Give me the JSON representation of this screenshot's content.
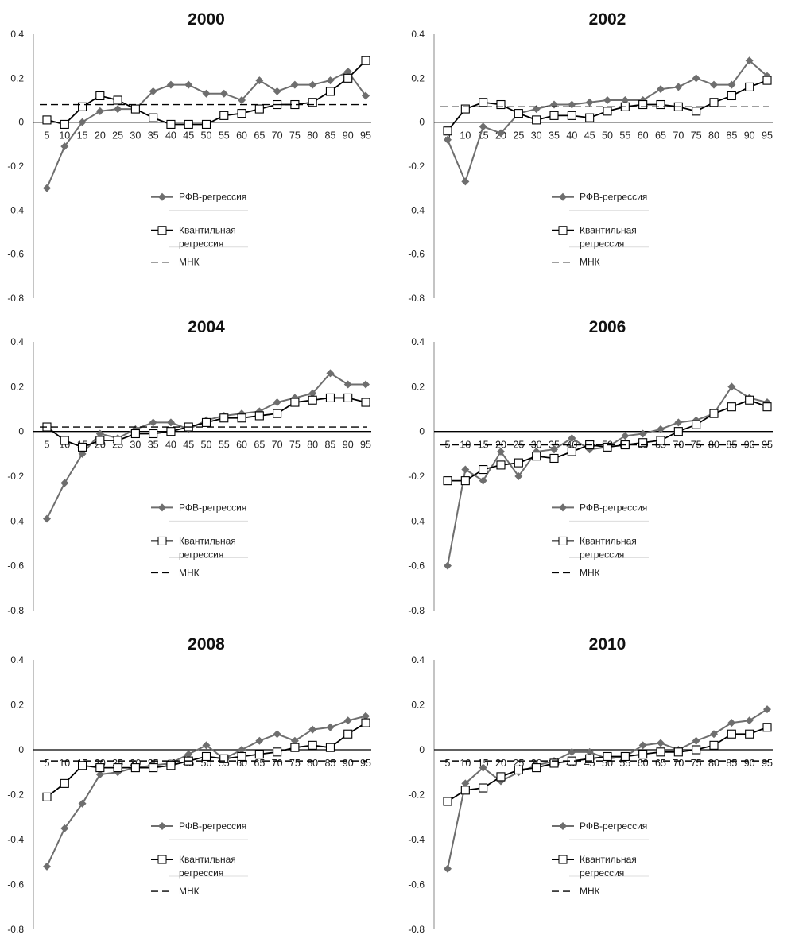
{
  "legend": {
    "rfv": "РФВ-регрессия",
    "quantile_line1": "Квантильная",
    "quantile_line2": "регрессия",
    "ols": "МНК"
  },
  "colors": {
    "rfv": "#6e6e6e",
    "quantile": "#000000",
    "ols": "#000000",
    "axis": "#8a8a8a",
    "zero_line": "#000000",
    "legend_divider": "#dcdcdc"
  },
  "chart_data": [
    {
      "type": "line",
      "title": "2000",
      "x": [
        5,
        10,
        15,
        20,
        25,
        30,
        35,
        40,
        45,
        50,
        55,
        60,
        65,
        70,
        75,
        80,
        85,
        90,
        95
      ],
      "ylim": [
        -0.8,
        0.4
      ],
      "yticks": [
        "0.4",
        "0.2",
        "0",
        "-0.2",
        "-0.4",
        "-0.6",
        "-0.8"
      ],
      "xticks": [
        "5",
        "10",
        "15",
        "20",
        "25",
        "30",
        "35",
        "40",
        "45",
        "50",
        "55",
        "60",
        "65",
        "70",
        "75",
        "80",
        "85",
        "90",
        "95"
      ],
      "legend_position": "center",
      "series": [
        {
          "name": "РФВ-регрессия",
          "marker": "diamond",
          "values": [
            -0.3,
            -0.11,
            0.0,
            0.05,
            0.06,
            0.06,
            0.14,
            0.17,
            0.17,
            0.13,
            0.13,
            0.1,
            0.19,
            0.14,
            0.17,
            0.17,
            0.19,
            0.23,
            0.12
          ]
        },
        {
          "name": "Квантильная регрессия",
          "marker": "square",
          "values": [
            0.01,
            -0.01,
            0.07,
            0.12,
            0.1,
            0.06,
            0.02,
            -0.01,
            -0.01,
            -0.01,
            0.03,
            0.04,
            0.06,
            0.08,
            0.08,
            0.09,
            0.14,
            0.2,
            0.28
          ]
        },
        {
          "name": "МНК",
          "style": "dashed",
          "values": [
            0.08,
            0.08,
            0.08,
            0.08,
            0.08,
            0.08,
            0.08,
            0.08,
            0.08,
            0.08,
            0.08,
            0.08,
            0.08,
            0.08,
            0.08,
            0.08,
            0.08,
            0.08,
            0.08
          ]
        }
      ]
    },
    {
      "type": "line",
      "title": "2002",
      "x": [
        5,
        10,
        15,
        20,
        25,
        30,
        35,
        40,
        45,
        50,
        55,
        60,
        65,
        70,
        75,
        80,
        85,
        90,
        95
      ],
      "ylim": [
        -0.8,
        0.4
      ],
      "yticks": [
        "0.4",
        "0.2",
        "0",
        "-0.2",
        "-0.4",
        "-0.6",
        "-0.8"
      ],
      "xticks": [
        "5",
        "10",
        "15",
        "20",
        "25",
        "30",
        "35",
        "40",
        "45",
        "50",
        "55",
        "60",
        "65",
        "70",
        "75",
        "80",
        "85",
        "90",
        "95"
      ],
      "legend_position": "center",
      "series": [
        {
          "name": "РФВ-регрессия",
          "marker": "diamond",
          "values": [
            -0.08,
            -0.27,
            -0.02,
            -0.05,
            0.04,
            0.06,
            0.08,
            0.08,
            0.09,
            0.1,
            0.1,
            0.1,
            0.15,
            0.16,
            0.2,
            0.17,
            0.17,
            0.28,
            0.21
          ]
        },
        {
          "name": "Квантильная регрессия",
          "marker": "square",
          "values": [
            -0.04,
            0.06,
            0.09,
            0.08,
            0.04,
            0.01,
            0.03,
            0.03,
            0.02,
            0.05,
            0.07,
            0.08,
            0.08,
            0.07,
            0.05,
            0.09,
            0.12,
            0.16,
            0.19
          ]
        },
        {
          "name": "МНК",
          "style": "dashed",
          "values": [
            0.07,
            0.07,
            0.07,
            0.07,
            0.07,
            0.07,
            0.07,
            0.07,
            0.07,
            0.07,
            0.07,
            0.07,
            0.07,
            0.07,
            0.07,
            0.07,
            0.07,
            0.07,
            0.07
          ]
        }
      ]
    },
    {
      "type": "line",
      "title": "2004",
      "x": [
        5,
        10,
        15,
        20,
        25,
        30,
        35,
        40,
        45,
        50,
        55,
        60,
        65,
        70,
        75,
        80,
        85,
        90,
        95
      ],
      "ylim": [
        -0.8,
        0.4
      ],
      "yticks": [
        "0.4",
        "0.2",
        "0",
        "-0.2",
        "-0.4",
        "-0.6",
        "-0.8"
      ],
      "xticks": [
        "5",
        "10",
        "15",
        "20",
        "25",
        "30",
        "35",
        "40",
        "45",
        "50",
        "55",
        "60",
        "65",
        "70",
        "75",
        "80",
        "85",
        "90",
        "95"
      ],
      "legend_position": "center",
      "series": [
        {
          "name": "РФВ-регрессия",
          "marker": "diamond",
          "values": [
            -0.39,
            -0.23,
            -0.1,
            -0.01,
            -0.03,
            0.01,
            0.04,
            0.04,
            0.01,
            0.05,
            0.07,
            0.08,
            0.09,
            0.13,
            0.15,
            0.17,
            0.26,
            0.21,
            0.21
          ]
        },
        {
          "name": "Квантильная регрессия",
          "marker": "square",
          "values": [
            0.02,
            -0.04,
            -0.07,
            -0.04,
            -0.04,
            -0.01,
            -0.01,
            0.0,
            0.02,
            0.04,
            0.06,
            0.06,
            0.07,
            0.08,
            0.13,
            0.14,
            0.15,
            0.15,
            0.13
          ]
        },
        {
          "name": "МНК",
          "style": "dashed",
          "values": [
            0.02,
            0.02,
            0.02,
            0.02,
            0.02,
            0.02,
            0.02,
            0.02,
            0.02,
            0.02,
            0.02,
            0.02,
            0.02,
            0.02,
            0.02,
            0.02,
            0.02,
            0.02,
            0.02
          ]
        }
      ]
    },
    {
      "type": "line",
      "title": "2006",
      "x": [
        5,
        10,
        15,
        20,
        25,
        30,
        35,
        40,
        45,
        50,
        55,
        60,
        65,
        70,
        75,
        80,
        85,
        90,
        95
      ],
      "ylim": [
        -0.8,
        0.4
      ],
      "yticks": [
        "0.4",
        "0.2",
        "0",
        "-0.2",
        "-0.4",
        "-0.6",
        "-0.8"
      ],
      "xticks": [
        "5",
        "10",
        "15",
        "20",
        "25",
        "30",
        "35",
        "40",
        "45",
        "50",
        "55",
        "60",
        "65",
        "70",
        "75",
        "80",
        "85",
        "90",
        "95"
      ],
      "legend_position": "center",
      "series": [
        {
          "name": "РФВ-регрессия",
          "marker": "diamond",
          "values": [
            -0.6,
            -0.17,
            -0.22,
            -0.09,
            -0.2,
            -0.09,
            -0.08,
            -0.03,
            -0.08,
            -0.07,
            -0.02,
            -0.01,
            0.01,
            0.04,
            0.05,
            0.08,
            0.2,
            0.15,
            0.13
          ]
        },
        {
          "name": "Квантильная регрессия",
          "marker": "square",
          "values": [
            -0.22,
            -0.22,
            -0.17,
            -0.15,
            -0.14,
            -0.11,
            -0.12,
            -0.09,
            -0.06,
            -0.07,
            -0.06,
            -0.05,
            -0.04,
            0.0,
            0.03,
            0.08,
            0.11,
            0.14,
            0.11
          ]
        },
        {
          "name": "МНК",
          "style": "dashed",
          "values": [
            -0.06,
            -0.06,
            -0.06,
            -0.06,
            -0.06,
            -0.06,
            -0.06,
            -0.06,
            -0.06,
            -0.06,
            -0.06,
            -0.06,
            -0.06,
            -0.06,
            -0.06,
            -0.06,
            -0.06,
            -0.06,
            -0.06
          ]
        }
      ]
    },
    {
      "type": "line",
      "title": "2008",
      "x": [
        5,
        10,
        15,
        20,
        25,
        30,
        35,
        40,
        45,
        50,
        55,
        60,
        65,
        70,
        75,
        80,
        85,
        90,
        95
      ],
      "ylim": [
        -0.8,
        0.4
      ],
      "yticks": [
        "0.4",
        "0.2",
        "0",
        "-0.2",
        "-0.4",
        "-0.6",
        "-0.8"
      ],
      "xticks": [
        "5",
        "10",
        "15",
        "20",
        "25",
        "30",
        "35",
        "40",
        "45",
        "50",
        "55",
        "60",
        "65",
        "70",
        "75",
        "80",
        "85",
        "90",
        "95"
      ],
      "legend_position": "center",
      "series": [
        {
          "name": "РФВ-регрессия",
          "marker": "diamond",
          "values": [
            -0.52,
            -0.35,
            -0.24,
            -0.11,
            -0.1,
            -0.08,
            -0.07,
            -0.06,
            -0.02,
            0.02,
            -0.04,
            0.0,
            0.04,
            0.07,
            0.04,
            0.09,
            0.1,
            0.13,
            0.15
          ]
        },
        {
          "name": "Квантильная регрессия",
          "marker": "square",
          "values": [
            -0.21,
            -0.15,
            -0.07,
            -0.08,
            -0.08,
            -0.08,
            -0.08,
            -0.07,
            -0.05,
            -0.03,
            -0.04,
            -0.03,
            -0.02,
            -0.01,
            0.01,
            0.02,
            0.01,
            0.07,
            0.12
          ]
        },
        {
          "name": "МНК",
          "style": "dashed",
          "values": [
            -0.05,
            -0.05,
            -0.05,
            -0.05,
            -0.05,
            -0.05,
            -0.05,
            -0.05,
            -0.05,
            -0.05,
            -0.05,
            -0.05,
            -0.05,
            -0.05,
            -0.05,
            -0.05,
            -0.05,
            -0.05,
            -0.05
          ]
        }
      ]
    },
    {
      "type": "line",
      "title": "2010",
      "x": [
        5,
        10,
        15,
        20,
        25,
        30,
        35,
        40,
        45,
        50,
        55,
        60,
        65,
        70,
        75,
        80,
        85,
        90,
        95
      ],
      "ylim": [
        -0.8,
        0.4
      ],
      "yticks": [
        "0.4",
        "0.2",
        "0",
        "-0.2",
        "-0.4",
        "-0.6",
        "-0.8"
      ],
      "xticks": [
        "5",
        "10",
        "15",
        "20",
        "25",
        "30",
        "35",
        "40",
        "45",
        "50",
        "55",
        "60",
        "65",
        "70",
        "75",
        "80",
        "85",
        "90",
        "95"
      ],
      "legend_position": "center",
      "series": [
        {
          "name": "РФВ-регрессия",
          "marker": "diamond",
          "values": [
            -0.53,
            -0.15,
            -0.08,
            -0.14,
            -0.1,
            -0.07,
            -0.05,
            -0.01,
            -0.01,
            -0.04,
            -0.03,
            0.02,
            0.03,
            0.0,
            0.04,
            0.07,
            0.12,
            0.13,
            0.18
          ]
        },
        {
          "name": "Квантильная регрессия",
          "marker": "square",
          "values": [
            -0.23,
            -0.18,
            -0.17,
            -0.12,
            -0.09,
            -0.08,
            -0.06,
            -0.05,
            -0.04,
            -0.03,
            -0.03,
            -0.02,
            -0.01,
            -0.01,
            0.0,
            0.02,
            0.07,
            0.07,
            0.1
          ]
        },
        {
          "name": "МНК",
          "style": "dashed",
          "values": [
            -0.05,
            -0.05,
            -0.05,
            -0.05,
            -0.05,
            -0.05,
            -0.05,
            -0.05,
            -0.05,
            -0.05,
            -0.05,
            -0.05,
            -0.05,
            -0.05,
            -0.05,
            -0.05,
            -0.05,
            -0.05,
            -0.05
          ]
        }
      ]
    }
  ]
}
